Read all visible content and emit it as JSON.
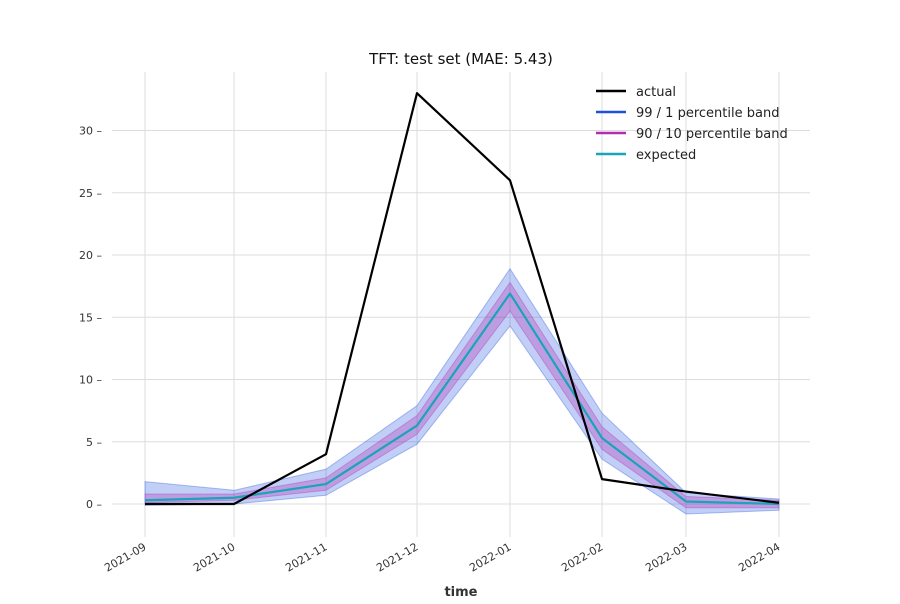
{
  "chart_data": {
    "type": "line",
    "title": "TFT: test set (MAE: 5.43)",
    "xlabel": "time",
    "ylabel": "",
    "x": [
      "2021-09",
      "2021-10",
      "2021-11",
      "2021-12",
      "2022-01",
      "2022-02",
      "2022-03",
      "2022-04"
    ],
    "ylim": [
      -2.2,
      34.9
    ],
    "yticks": [
      0,
      5,
      10,
      15,
      20,
      25,
      30
    ],
    "grid": true,
    "legend_position": "top-right",
    "series": [
      {
        "name": "actual",
        "color": "#000000",
        "values": [
          0,
          0,
          4,
          33,
          26,
          2,
          1,
          0.1
        ]
      },
      {
        "name": "99 / 1 percentile band",
        "color": "#1f4fe0",
        "band_low": [
          -0.1,
          0.0,
          0.7,
          4.8,
          14.3,
          3.6,
          -0.8,
          -0.5
        ],
        "band_high": [
          1.8,
          1.1,
          2.8,
          7.9,
          18.9,
          7.3,
          0.9,
          0.4
        ]
      },
      {
        "name": "90 / 10 percentile band",
        "color": "#b42ab4",
        "band_low": [
          0.1,
          0.3,
          1.1,
          5.6,
          15.5,
          4.4,
          -0.3,
          -0.3
        ],
        "band_high": [
          0.8,
          0.8,
          2.1,
          7.1,
          17.8,
          6.2,
          0.6,
          0.3
        ]
      },
      {
        "name": "expected",
        "color": "#1ba3b8",
        "values": [
          0.3,
          0.5,
          1.6,
          6.3,
          16.9,
          5.3,
          0.2,
          0.0
        ]
      }
    ]
  }
}
